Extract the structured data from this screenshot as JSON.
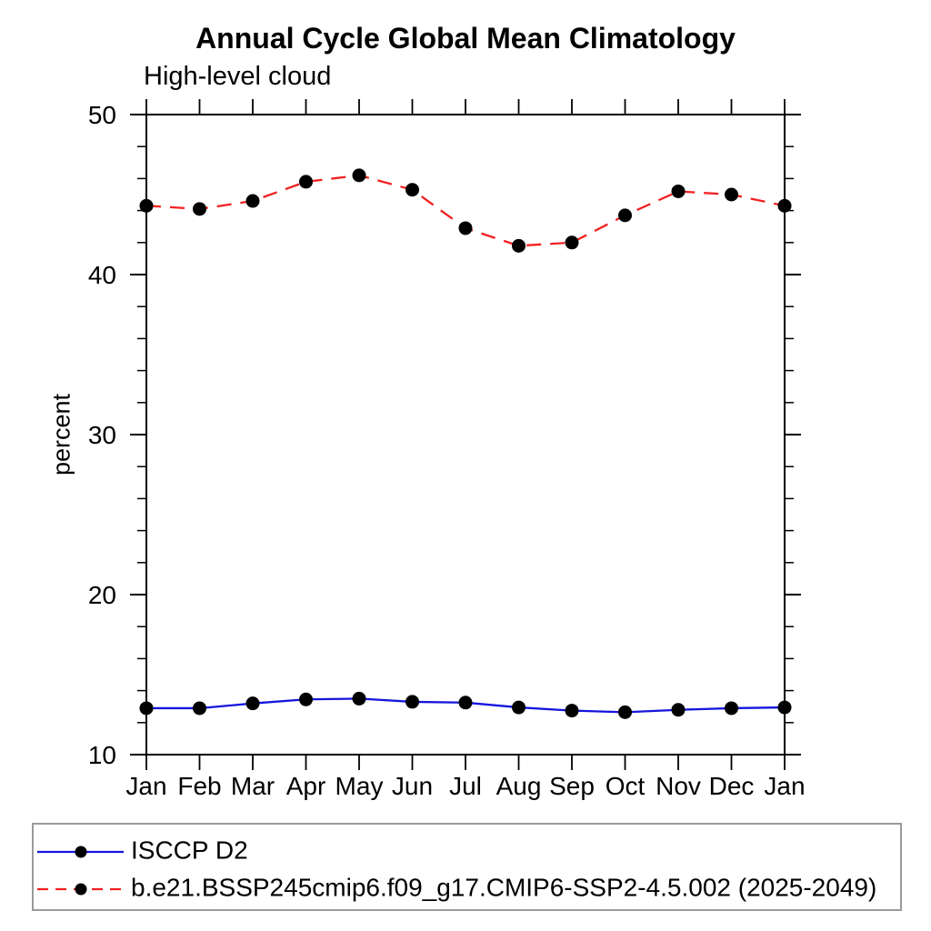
{
  "chart_data": {
    "type": "line",
    "title": "Annual Cycle Global Mean Climatology",
    "subtitle": "High-level cloud",
    "xlabel": "",
    "ylabel": "percent",
    "categories": [
      "Jan",
      "Feb",
      "Mar",
      "Apr",
      "May",
      "Jun",
      "Jul",
      "Aug",
      "Sep",
      "Oct",
      "Nov",
      "Dec",
      "Jan"
    ],
    "ylim": [
      10,
      50
    ],
    "yticks_major": [
      10,
      20,
      30,
      40,
      50
    ],
    "ytick_minor_step": 2,
    "grid": false,
    "legend_position": "bottom-left-box",
    "frame_color": "#000000",
    "series": [
      {
        "name": "ISCCP D2",
        "color": "#1515dd",
        "style": "solid",
        "marker": "filled-circle",
        "marker_color": "#000000",
        "values": [
          12.9,
          12.9,
          13.2,
          13.45,
          13.5,
          13.3,
          13.25,
          12.95,
          12.75,
          12.65,
          12.8,
          12.9,
          12.95
        ]
      },
      {
        "name": "b.e21.BSSP245cmip6.f09_g17.CMIP6-SSP2-4.5.002 (2025-2049)",
        "color": "#f22020",
        "style": "dashed",
        "marker": "filled-circle",
        "marker_color": "#000000",
        "values": [
          44.3,
          44.1,
          44.6,
          45.8,
          46.2,
          45.3,
          42.9,
          41.8,
          42.0,
          43.7,
          45.2,
          45.0,
          44.3
        ]
      }
    ]
  }
}
